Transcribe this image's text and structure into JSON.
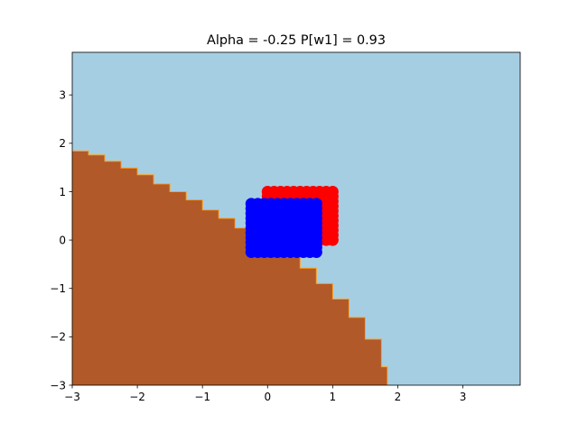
{
  "chart_data": {
    "type": "scatter",
    "title": "Alpha = -0.25 P[w1] = 0.93",
    "xlabel": "",
    "ylabel": "",
    "xlim": [
      -3,
      3.88
    ],
    "ylim": [
      -3,
      3.88
    ],
    "xticks": [
      -3,
      -2,
      -1,
      0,
      1,
      2,
      3
    ],
    "yticks": [
      -3,
      -2,
      -1,
      0,
      1,
      2,
      3
    ],
    "tick_labels_x": [
      "−3",
      "−2",
      "−1",
      "0",
      "1",
      "2",
      "3"
    ],
    "tick_labels_y": [
      "−3",
      "−2",
      "−1",
      "0",
      "1",
      "2",
      "3"
    ],
    "background": {
      "type": "decision_regions",
      "region_colors": {
        "class_0": "#b15928",
        "class_1": "#a6cee3",
        "edge": "#ff9f1c"
      },
      "boundary": [
        [
          -3.0,
          1.84
        ],
        [
          -2.75,
          1.76
        ],
        [
          -2.5,
          1.63
        ],
        [
          -2.25,
          1.49
        ],
        [
          -2.0,
          1.35
        ],
        [
          -1.75,
          1.16
        ],
        [
          -1.5,
          1.0
        ],
        [
          -1.25,
          0.83
        ],
        [
          -1.0,
          0.62
        ],
        [
          -0.75,
          0.45
        ],
        [
          -0.5,
          0.25
        ],
        [
          -0.25,
          0.05
        ],
        [
          0.0,
          -0.15
        ],
        [
          0.25,
          -0.35
        ],
        [
          0.5,
          -0.58
        ],
        [
          0.75,
          -0.9
        ],
        [
          1.0,
          -1.22
        ],
        [
          1.25,
          -1.6
        ],
        [
          1.5,
          -2.05
        ],
        [
          1.75,
          -2.62
        ],
        [
          1.84,
          -3.0
        ]
      ]
    },
    "series": [
      {
        "color": "#ff0000",
        "x_range": [
          0.0,
          1.0
        ],
        "y_range": [
          0.0,
          1.0
        ]
      },
      {
        "color": "#0000ff",
        "x_range": [
          -0.25,
          0.75
        ],
        "y_range": [
          -0.25,
          0.75
        ]
      }
    ]
  }
}
